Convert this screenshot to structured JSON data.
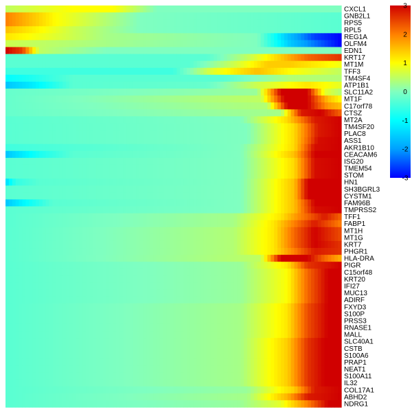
{
  "chart_data": {
    "type": "heatmap",
    "genes": [
      "CXCL1",
      "GNB2L1",
      "RPS5",
      "RPL5",
      "REG1A",
      "OLFM4",
      "EDN1",
      "KRT17",
      "MT1M",
      "TFF3",
      "TM4SF4",
      "ATP1B1",
      "SLC11A2",
      "MT1F",
      "C17orf78",
      "CTSZ",
      "MT2A",
      "TM4SF20",
      "PLAC8",
      "ASS1",
      "AKR1B10",
      "CEACAM6",
      "ISG20",
      "TMEM54",
      "STOM",
      "HN1",
      "SH3BGRL3",
      "CYSTM1",
      "FAM96B",
      "TMPRSS2",
      "TFF1",
      "FABP1",
      "MT1H",
      "MT1G",
      "KRT7",
      "PHGR1",
      "HLA-DRA",
      "PIGR",
      "C15orf48",
      "KRT20",
      "IFI27",
      "MUC13",
      "ADIRF",
      "FXYD3",
      "S100P",
      "PRSS3",
      "RNASE1",
      "MALL",
      "SLC40A1",
      "CSTB",
      "S100A6",
      "PRAP1",
      "NEAT1",
      "S100A11",
      "IL32",
      "COL17A1",
      "ABHD2",
      "NDRG1"
    ],
    "columns": 100,
    "legend": {
      "ticks": [
        3,
        2,
        1,
        0,
        -1,
        -2,
        -3
      ],
      "range": [
        -3,
        3
      ],
      "position": "right"
    },
    "colormap": [
      "#0000ff",
      "#00a0ff",
      "#00ffff",
      "#80ffc0",
      "#ffff00",
      "#ff8000",
      "#d00000"
    ],
    "profiles": {
      "CXCL1": [
        [
          0,
          0.5
        ],
        [
          0.2,
          1.0
        ],
        [
          0.32,
          1.0
        ],
        [
          0.45,
          0.0
        ],
        [
          1,
          0.0
        ]
      ],
      "GNB2L1": [
        [
          0,
          2.0
        ],
        [
          0.15,
          1.0
        ],
        [
          0.4,
          0.0
        ],
        [
          1,
          -0.3
        ]
      ],
      "RPS5": [
        [
          0,
          2.0
        ],
        [
          0.15,
          1.0
        ],
        [
          0.4,
          0.0
        ],
        [
          1,
          -0.3
        ]
      ],
      "RPL5": [
        [
          0,
          1.5
        ],
        [
          0.2,
          0.6
        ],
        [
          0.4,
          0.0
        ],
        [
          1,
          -0.3
        ]
      ],
      "REG1A": [
        [
          0,
          1.2
        ],
        [
          0.3,
          0.3
        ],
        [
          0.75,
          0.0
        ],
        [
          0.84,
          -1.6
        ],
        [
          0.92,
          -2.6
        ],
        [
          1,
          -3.0
        ]
      ],
      "OLFM4": [
        [
          0,
          0.6
        ],
        [
          0.4,
          0.2
        ],
        [
          0.75,
          0.0
        ],
        [
          0.85,
          -1.6
        ],
        [
          1,
          -3.0
        ]
      ],
      "EDN1": [
        [
          0,
          3.0
        ],
        [
          0.05,
          2.5
        ],
        [
          0.1,
          0.5
        ],
        [
          0.3,
          0.0
        ],
        [
          1,
          0.0
        ]
      ],
      "KRT17": [
        [
          0,
          -0.3
        ],
        [
          0.6,
          -0.3
        ],
        [
          0.72,
          0.5
        ],
        [
          0.82,
          1.4
        ],
        [
          0.9,
          2.2
        ],
        [
          1,
          2.6
        ]
      ],
      "MT1M": [
        [
          0,
          -0.3
        ],
        [
          0.55,
          -0.3
        ],
        [
          0.68,
          0.6
        ],
        [
          0.78,
          1.4
        ],
        [
          0.85,
          1.4
        ],
        [
          1,
          0.9
        ]
      ],
      "TFF3": [
        [
          0,
          -0.5
        ],
        [
          0.5,
          -0.5
        ],
        [
          0.62,
          0.8
        ],
        [
          0.75,
          1.5
        ],
        [
          0.85,
          1.0
        ],
        [
          1,
          0.5
        ]
      ],
      "TM4SF4": [
        [
          0,
          -1.0
        ],
        [
          0.07,
          -0.8
        ],
        [
          0.2,
          -0.3
        ],
        [
          0.65,
          -0.3
        ],
        [
          0.85,
          0.4
        ],
        [
          1,
          0.4
        ]
      ],
      "ATP1B1": [
        [
          0,
          -1.6
        ],
        [
          0.08,
          -1.2
        ],
        [
          0.2,
          -0.3
        ],
        [
          0.6,
          -0.2
        ],
        [
          0.75,
          0.6
        ],
        [
          0.9,
          1.2
        ],
        [
          1,
          0.8
        ]
      ],
      "SLC11A2": [
        [
          0,
          -0.2
        ],
        [
          0.75,
          0.2
        ],
        [
          0.82,
          3.0
        ],
        [
          0.9,
          3.0
        ],
        [
          0.95,
          0.8
        ],
        [
          1,
          0.4
        ]
      ],
      "MT1F": [
        [
          0,
          -0.2
        ],
        [
          0.76,
          0.5
        ],
        [
          0.83,
          3.0
        ],
        [
          0.9,
          3.0
        ],
        [
          0.96,
          1.5
        ],
        [
          1,
          1.0
        ]
      ],
      "C17orf78": [
        [
          0,
          -0.2
        ],
        [
          0.78,
          0.4
        ],
        [
          0.84,
          3.0
        ],
        [
          0.9,
          3.0
        ],
        [
          0.96,
          1.8
        ],
        [
          1,
          1.5
        ]
      ],
      "CTSZ": [
        [
          0,
          -0.2
        ],
        [
          0.82,
          0.3
        ],
        [
          0.88,
          2.8
        ],
        [
          0.94,
          3.0
        ],
        [
          1,
          2.2
        ]
      ],
      "MT2A": [
        [
          0,
          -0.3
        ],
        [
          0.7,
          0.0
        ],
        [
          0.84,
          1.3
        ],
        [
          0.92,
          2.8
        ],
        [
          1,
          3.0
        ]
      ],
      "TM4SF20": [
        [
          0,
          -0.3
        ],
        [
          0.72,
          0.0
        ],
        [
          0.86,
          1.3
        ],
        [
          0.93,
          2.8
        ],
        [
          1,
          3.0
        ]
      ],
      "PLAC8": [
        [
          0,
          -0.3
        ],
        [
          0.72,
          0.0
        ],
        [
          0.86,
          1.3
        ],
        [
          0.93,
          2.8
        ],
        [
          1,
          3.0
        ]
      ],
      "ASS1": [
        [
          0,
          -0.3
        ],
        [
          0.72,
          0.0
        ],
        [
          0.86,
          1.3
        ],
        [
          0.93,
          2.9
        ],
        [
          1,
          3.0
        ]
      ],
      "AKR1B10": [
        [
          0,
          -0.5
        ],
        [
          0.7,
          0.0
        ],
        [
          0.86,
          1.3
        ],
        [
          0.92,
          2.9
        ],
        [
          1,
          3.0
        ]
      ],
      "CEACAM6": [
        [
          0,
          -1.6
        ],
        [
          0.1,
          -0.8
        ],
        [
          0.2,
          -0.3
        ],
        [
          0.7,
          0.0
        ],
        [
          0.86,
          1.5
        ],
        [
          0.92,
          3.0
        ],
        [
          1,
          3.0
        ]
      ],
      "ISG20": [
        [
          0,
          -0.3
        ],
        [
          0.7,
          0.0
        ],
        [
          0.86,
          1.3
        ],
        [
          0.92,
          2.9
        ],
        [
          1,
          3.0
        ]
      ],
      "TMEM54": [
        [
          0,
          -0.3
        ],
        [
          0.7,
          0.0
        ],
        [
          0.86,
          1.3
        ],
        [
          0.92,
          2.9
        ],
        [
          1,
          3.0
        ]
      ],
      "STOM": [
        [
          0,
          -0.3
        ],
        [
          0.7,
          0.0
        ],
        [
          0.86,
          1.3
        ],
        [
          0.92,
          2.9
        ],
        [
          1,
          3.0
        ]
      ],
      "HN1": [
        [
          0,
          -1.4
        ],
        [
          0.03,
          -0.6
        ],
        [
          0.1,
          -0.3
        ],
        [
          0.7,
          0.0
        ],
        [
          0.86,
          1.5
        ],
        [
          0.9,
          3.0
        ],
        [
          1,
          3.0
        ]
      ],
      "SH3BGRL3": [
        [
          0,
          -0.3
        ],
        [
          0.7,
          0.0
        ],
        [
          0.86,
          1.5
        ],
        [
          0.9,
          3.0
        ],
        [
          1,
          3.0
        ]
      ],
      "CYSTM1": [
        [
          0,
          -0.3
        ],
        [
          0.7,
          0.0
        ],
        [
          0.86,
          1.5
        ],
        [
          0.9,
          3.0
        ],
        [
          1,
          3.0
        ]
      ],
      "FAM96B": [
        [
          0,
          -1.6
        ],
        [
          0.06,
          -1.0
        ],
        [
          0.14,
          -0.3
        ],
        [
          0.7,
          0.0
        ],
        [
          0.86,
          1.5
        ],
        [
          0.92,
          3.0
        ],
        [
          1,
          3.0
        ]
      ],
      "TMPRSS2": [
        [
          0,
          -0.3
        ],
        [
          0.7,
          0.0
        ],
        [
          0.86,
          1.5
        ],
        [
          0.92,
          2.9
        ],
        [
          1,
          3.0
        ]
      ],
      "TFF1": [
        [
          0,
          -0.3
        ],
        [
          0.68,
          0.3
        ],
        [
          0.82,
          1.2
        ],
        [
          0.88,
          2.0
        ],
        [
          0.95,
          2.8
        ],
        [
          1,
          2.2
        ]
      ],
      "FABP1": [
        [
          0,
          -0.3
        ],
        [
          0.68,
          0.3
        ],
        [
          0.8,
          1.2
        ],
        [
          0.86,
          2.0
        ],
        [
          0.92,
          2.8
        ],
        [
          1,
          2.0
        ]
      ],
      "MT1H": [
        [
          0,
          -0.3
        ],
        [
          0.68,
          0.4
        ],
        [
          0.8,
          1.2
        ],
        [
          0.86,
          2.2
        ],
        [
          0.92,
          3.0
        ],
        [
          1,
          2.4
        ]
      ],
      "MT1G": [
        [
          0,
          -0.3
        ],
        [
          0.68,
          0.4
        ],
        [
          0.8,
          1.2
        ],
        [
          0.86,
          2.2
        ],
        [
          0.92,
          3.0
        ],
        [
          1,
          2.4
        ]
      ],
      "KRT7": [
        [
          0,
          -0.3
        ],
        [
          0.68,
          0.4
        ],
        [
          0.8,
          1.2
        ],
        [
          0.86,
          2.2
        ],
        [
          0.92,
          3.0
        ],
        [
          1,
          2.6
        ]
      ],
      "PHGR1": [
        [
          0,
          -0.3
        ],
        [
          0.68,
          0.4
        ],
        [
          0.8,
          1.2
        ],
        [
          0.86,
          2.0
        ],
        [
          0.92,
          2.8
        ],
        [
          1,
          2.6
        ]
      ],
      "HLA-DRA": [
        [
          0,
          -0.3
        ],
        [
          0.76,
          0.5
        ],
        [
          0.82,
          3.0
        ],
        [
          0.9,
          3.0
        ],
        [
          0.95,
          2.2
        ],
        [
          1,
          1.6
        ]
      ],
      "PIGR": [
        [
          0,
          -0.3
        ],
        [
          0.7,
          0.2
        ],
        [
          0.84,
          1.2
        ],
        [
          0.9,
          2.6
        ],
        [
          1,
          3.0
        ]
      ],
      "C15orf48": [
        [
          0,
          -0.3
        ],
        [
          0.7,
          0.2
        ],
        [
          0.84,
          1.0
        ],
        [
          0.9,
          2.2
        ],
        [
          0.96,
          3.0
        ],
        [
          1,
          3.0
        ]
      ],
      "KRT20": [
        [
          0,
          -0.3
        ],
        [
          0.7,
          0.2
        ],
        [
          0.84,
          1.0
        ],
        [
          0.9,
          2.2
        ],
        [
          0.96,
          3.0
        ],
        [
          1,
          3.0
        ]
      ],
      "IFI27": [
        [
          0,
          -0.3
        ],
        [
          0.7,
          0.2
        ],
        [
          0.84,
          1.0
        ],
        [
          0.9,
          2.2
        ],
        [
          0.96,
          3.0
        ],
        [
          1,
          3.0
        ]
      ],
      "MUC13": [
        [
          0,
          -0.3
        ],
        [
          0.7,
          0.2
        ],
        [
          0.84,
          1.0
        ],
        [
          0.9,
          2.2
        ],
        [
          0.96,
          3.0
        ],
        [
          1,
          3.0
        ]
      ],
      "ADIRF": [
        [
          0,
          -0.3
        ],
        [
          0.7,
          0.2
        ],
        [
          0.84,
          1.0
        ],
        [
          0.9,
          2.2
        ],
        [
          0.96,
          3.0
        ],
        [
          1,
          3.0
        ]
      ],
      "FXYD3": [
        [
          0,
          -0.3
        ],
        [
          0.7,
          0.3
        ],
        [
          0.84,
          1.2
        ],
        [
          0.9,
          2.4
        ],
        [
          0.96,
          3.0
        ],
        [
          1,
          3.0
        ]
      ],
      "S100P": [
        [
          0,
          -0.3
        ],
        [
          0.7,
          0.3
        ],
        [
          0.84,
          1.2
        ],
        [
          0.9,
          2.4
        ],
        [
          0.96,
          3.0
        ],
        [
          1,
          3.0
        ]
      ],
      "PRSS3": [
        [
          0,
          -0.3
        ],
        [
          0.7,
          0.3
        ],
        [
          0.84,
          1.2
        ],
        [
          0.9,
          2.4
        ],
        [
          0.96,
          3.0
        ],
        [
          1,
          3.0
        ]
      ],
      "RNASE1": [
        [
          0,
          -0.3
        ],
        [
          0.7,
          0.3
        ],
        [
          0.84,
          1.2
        ],
        [
          0.9,
          2.4
        ],
        [
          0.96,
          3.0
        ],
        [
          1,
          3.0
        ]
      ],
      "MALL": [
        [
          0,
          -0.3
        ],
        [
          0.7,
          0.3
        ],
        [
          0.84,
          1.2
        ],
        [
          0.9,
          2.4
        ],
        [
          0.96,
          3.0
        ],
        [
          1,
          3.0
        ]
      ],
      "SLC40A1": [
        [
          0,
          -0.3
        ],
        [
          0.7,
          0.3
        ],
        [
          0.84,
          1.4
        ],
        [
          0.9,
          2.6
        ],
        [
          0.95,
          3.0
        ],
        [
          1,
          3.0
        ]
      ],
      "CSTB": [
        [
          0,
          -0.3
        ],
        [
          0.7,
          0.3
        ],
        [
          0.84,
          1.4
        ],
        [
          0.9,
          2.6
        ],
        [
          0.95,
          3.0
        ],
        [
          1,
          3.0
        ]
      ],
      "S100A6": [
        [
          0,
          -0.3
        ],
        [
          0.7,
          0.3
        ],
        [
          0.84,
          1.4
        ],
        [
          0.9,
          2.6
        ],
        [
          0.95,
          3.0
        ],
        [
          1,
          3.0
        ]
      ],
      "PRAP1": [
        [
          0,
          -0.3
        ],
        [
          0.7,
          0.3
        ],
        [
          0.84,
          1.4
        ],
        [
          0.9,
          2.6
        ],
        [
          0.95,
          3.0
        ],
        [
          1,
          3.0
        ]
      ],
      "NEAT1": [
        [
          0,
          -0.3
        ],
        [
          0.7,
          0.3
        ],
        [
          0.84,
          1.4
        ],
        [
          0.9,
          2.6
        ],
        [
          0.95,
          3.0
        ],
        [
          1,
          3.0
        ]
      ],
      "S100A11": [
        [
          0,
          -0.3
        ],
        [
          0.7,
          0.3
        ],
        [
          0.84,
          1.4
        ],
        [
          0.9,
          2.6
        ],
        [
          0.95,
          3.0
        ],
        [
          1,
          3.0
        ]
      ],
      "IL32": [
        [
          0,
          -0.3
        ],
        [
          0.7,
          0.3
        ],
        [
          0.84,
          1.4
        ],
        [
          0.9,
          2.6
        ],
        [
          0.95,
          3.0
        ],
        [
          1,
          3.0
        ]
      ],
      "COL17A1": [
        [
          0,
          -0.3
        ],
        [
          0.72,
          0.2
        ],
        [
          0.86,
          1.4
        ],
        [
          0.92,
          2.8
        ],
        [
          1,
          3.0
        ]
      ],
      "ABHD2": [
        [
          0,
          -0.3
        ],
        [
          0.72,
          0.3
        ],
        [
          0.84,
          1.6
        ],
        [
          0.9,
          2.8
        ],
        [
          1,
          3.0
        ]
      ],
      "NDRG1": [
        [
          0,
          -0.3
        ],
        [
          0.7,
          0.2
        ],
        [
          0.82,
          0.8
        ],
        [
          0.9,
          2.0
        ],
        [
          0.96,
          3.0
        ],
        [
          1,
          3.0
        ]
      ]
    }
  }
}
